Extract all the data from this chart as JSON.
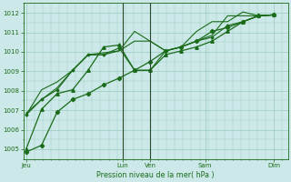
{
  "title": "",
  "xlabel": "Pression niveau de la mer( hPa )",
  "bg_color": "#cce8e8",
  "line_color": "#1a6b1a",
  "grid_color": "#99ccbb",
  "ylim": [
    1004.5,
    1012.5
  ],
  "tick_labels_y": [
    1005,
    1006,
    1007,
    1008,
    1009,
    1010,
    1011,
    1012
  ],
  "x_day_labels": [
    "Jeu",
    "Lun",
    "Ven",
    "Sam",
    "Dim"
  ],
  "x_day_positions": [
    0.0,
    3.5,
    4.5,
    6.5,
    9.0
  ],
  "xlim": [
    -0.1,
    9.5
  ],
  "vlines": [
    3.5,
    4.5
  ],
  "series": [
    {
      "y": [
        1004.85,
        1005.2,
        1006.9,
        1007.55,
        1007.85,
        1008.3,
        1008.65,
        1009.05,
        1009.5,
        1010.05,
        1010.25,
        1010.55,
        1011.05,
        1011.25,
        1011.55,
        1011.85,
        1011.9
      ],
      "marker": "D",
      "msize": 2.2,
      "lw": 0.9
    },
    {
      "y": [
        1005.0,
        1007.05,
        1007.85,
        1008.05,
        1009.05,
        1010.25,
        1010.35,
        1009.05,
        1009.05,
        1009.85,
        1010.05,
        1010.25,
        1010.55,
        1011.05,
        1011.55,
        1011.85,
        1011.9
      ],
      "marker": "^",
      "msize": 2.5,
      "lw": 0.9
    },
    {
      "y": [
        1006.75,
        1007.55,
        1008.05,
        1009.05,
        1009.85,
        1009.85,
        1010.2,
        1009.05,
        1009.05,
        1010.05,
        1010.25,
        1010.55,
        1010.75,
        1011.35,
        1011.55,
        1011.85,
        1011.9
      ],
      "marker": "D",
      "msize": 1.5,
      "lw": 0.8
    },
    {
      "y": [
        1006.85,
        1007.55,
        1008.15,
        1009.05,
        1009.85,
        1009.85,
        1010.05,
        1010.55,
        1010.55,
        1010.05,
        1010.25,
        1011.05,
        1011.55,
        1011.55,
        1012.05,
        1011.85,
        1011.9
      ],
      "marker": null,
      "msize": 0,
      "lw": 0.8
    },
    {
      "y": [
        1006.75,
        1008.05,
        1008.45,
        1009.05,
        1009.85,
        1009.95,
        1010.05,
        1011.05,
        1010.55,
        1010.05,
        1010.25,
        1010.55,
        1010.85,
        1011.85,
        1011.85,
        1011.85,
        1011.9
      ],
      "marker": null,
      "msize": 0,
      "lw": 0.8
    }
  ]
}
